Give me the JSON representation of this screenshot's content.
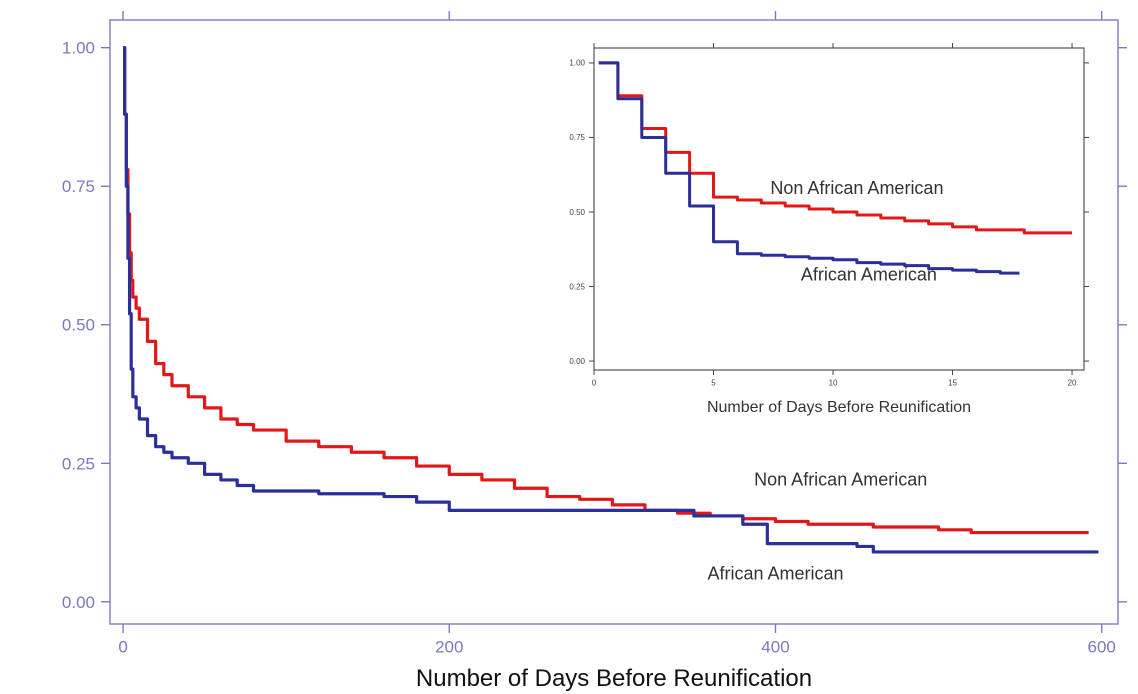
{
  "chart_data": [
    {
      "type": "line",
      "xlabel": "Number of Days Before Reunification",
      "ylabel": "",
      "xlim": [
        -8,
        610
      ],
      "ylim": [
        -0.04,
        1.05
      ],
      "x_ticks": [
        0,
        200,
        400,
        600
      ],
      "y_ticks": [
        0.0,
        0.25,
        0.5,
        0.75,
        1.0
      ],
      "x_tick_labels": [
        "0",
        "200",
        "400",
        "600"
      ],
      "y_tick_labels": [
        "0.00",
        "0.25",
        "0.50",
        "0.75",
        "1.00"
      ],
      "grid": false,
      "series": [
        {
          "name": "Non African American",
          "color": "#e01818",
          "step": true,
          "x": [
            0,
            1,
            2,
            3,
            4,
            5,
            6,
            8,
            10,
            15,
            20,
            25,
            30,
            40,
            50,
            60,
            70,
            80,
            100,
            120,
            140,
            160,
            180,
            200,
            220,
            240,
            260,
            280,
            300,
            320,
            340,
            360,
            380,
            400,
            420,
            440,
            460,
            480,
            500,
            520,
            540,
            560,
            580,
            592
          ],
          "y": [
            1.0,
            0.88,
            0.78,
            0.7,
            0.63,
            0.58,
            0.55,
            0.53,
            0.51,
            0.47,
            0.43,
            0.41,
            0.39,
            0.37,
            0.35,
            0.33,
            0.32,
            0.31,
            0.29,
            0.28,
            0.27,
            0.26,
            0.245,
            0.23,
            0.22,
            0.205,
            0.19,
            0.185,
            0.175,
            0.165,
            0.16,
            0.155,
            0.15,
            0.145,
            0.14,
            0.14,
            0.135,
            0.135,
            0.13,
            0.125,
            0.125,
            0.125,
            0.125,
            0.125
          ]
        },
        {
          "name": "African American",
          "color": "#2b2f99",
          "step": true,
          "x": [
            0,
            1,
            2,
            3,
            4,
            5,
            6,
            8,
            10,
            15,
            20,
            25,
            30,
            40,
            50,
            60,
            70,
            80,
            100,
            120,
            140,
            160,
            180,
            200,
            250,
            300,
            350,
            380,
            395,
            420,
            450,
            460,
            500,
            550,
            598
          ],
          "y": [
            1.0,
            0.88,
            0.75,
            0.62,
            0.52,
            0.42,
            0.37,
            0.35,
            0.33,
            0.3,
            0.28,
            0.27,
            0.26,
            0.25,
            0.23,
            0.22,
            0.21,
            0.2,
            0.2,
            0.195,
            0.195,
            0.19,
            0.18,
            0.165,
            0.165,
            0.165,
            0.155,
            0.14,
            0.105,
            0.105,
            0.1,
            0.09,
            0.09,
            0.09,
            0.09
          ]
        }
      ],
      "annotations": [
        {
          "text": "Non African American",
          "x": 440,
          "y": 0.21
        },
        {
          "text": "African American",
          "x": 400,
          "y": 0.04
        }
      ]
    },
    {
      "type": "line",
      "inset": true,
      "xlabel": "Number of Days Before Reunification",
      "ylabel": "",
      "xlim": [
        0,
        20.5
      ],
      "ylim": [
        -0.03,
        1.05
      ],
      "x_ticks": [
        0,
        5,
        10,
        15,
        20
      ],
      "y_ticks": [
        0.0,
        0.25,
        0.5,
        0.75,
        1.0
      ],
      "x_tick_labels": [
        "0",
        "5",
        "10",
        "15",
        "20"
      ],
      "y_tick_labels": [
        "0.00",
        "0.25",
        "0.50",
        "0.75",
        "1.00"
      ],
      "grid": false,
      "series": [
        {
          "name": "Non African American",
          "color": "#e01818",
          "step": true,
          "x": [
            0.2,
            1,
            2,
            3,
            4,
            5,
            6,
            7,
            8,
            9,
            10,
            11,
            12,
            13,
            14,
            15,
            16,
            17,
            18,
            19,
            20
          ],
          "y": [
            1.0,
            0.89,
            0.78,
            0.7,
            0.63,
            0.55,
            0.54,
            0.53,
            0.52,
            0.51,
            0.5,
            0.49,
            0.48,
            0.47,
            0.46,
            0.45,
            0.44,
            0.44,
            0.43,
            0.43,
            0.43
          ]
        },
        {
          "name": "African American",
          "color": "#2b2f99",
          "step": true,
          "x": [
            0.2,
            1,
            2,
            3,
            4,
            5,
            6,
            7,
            8,
            9,
            10,
            11,
            12,
            13,
            14,
            15,
            16,
            17,
            17.8
          ],
          "y": [
            1.0,
            0.88,
            0.75,
            0.63,
            0.52,
            0.4,
            0.36,
            0.355,
            0.35,
            0.345,
            0.34,
            0.33,
            0.325,
            0.32,
            0.31,
            0.305,
            0.3,
            0.295,
            0.295
          ]
        }
      ],
      "annotations": [
        {
          "text": "Non African American",
          "x": 11,
          "y": 0.56
        },
        {
          "text": "African American",
          "x": 11.5,
          "y": 0.27
        }
      ]
    }
  ]
}
